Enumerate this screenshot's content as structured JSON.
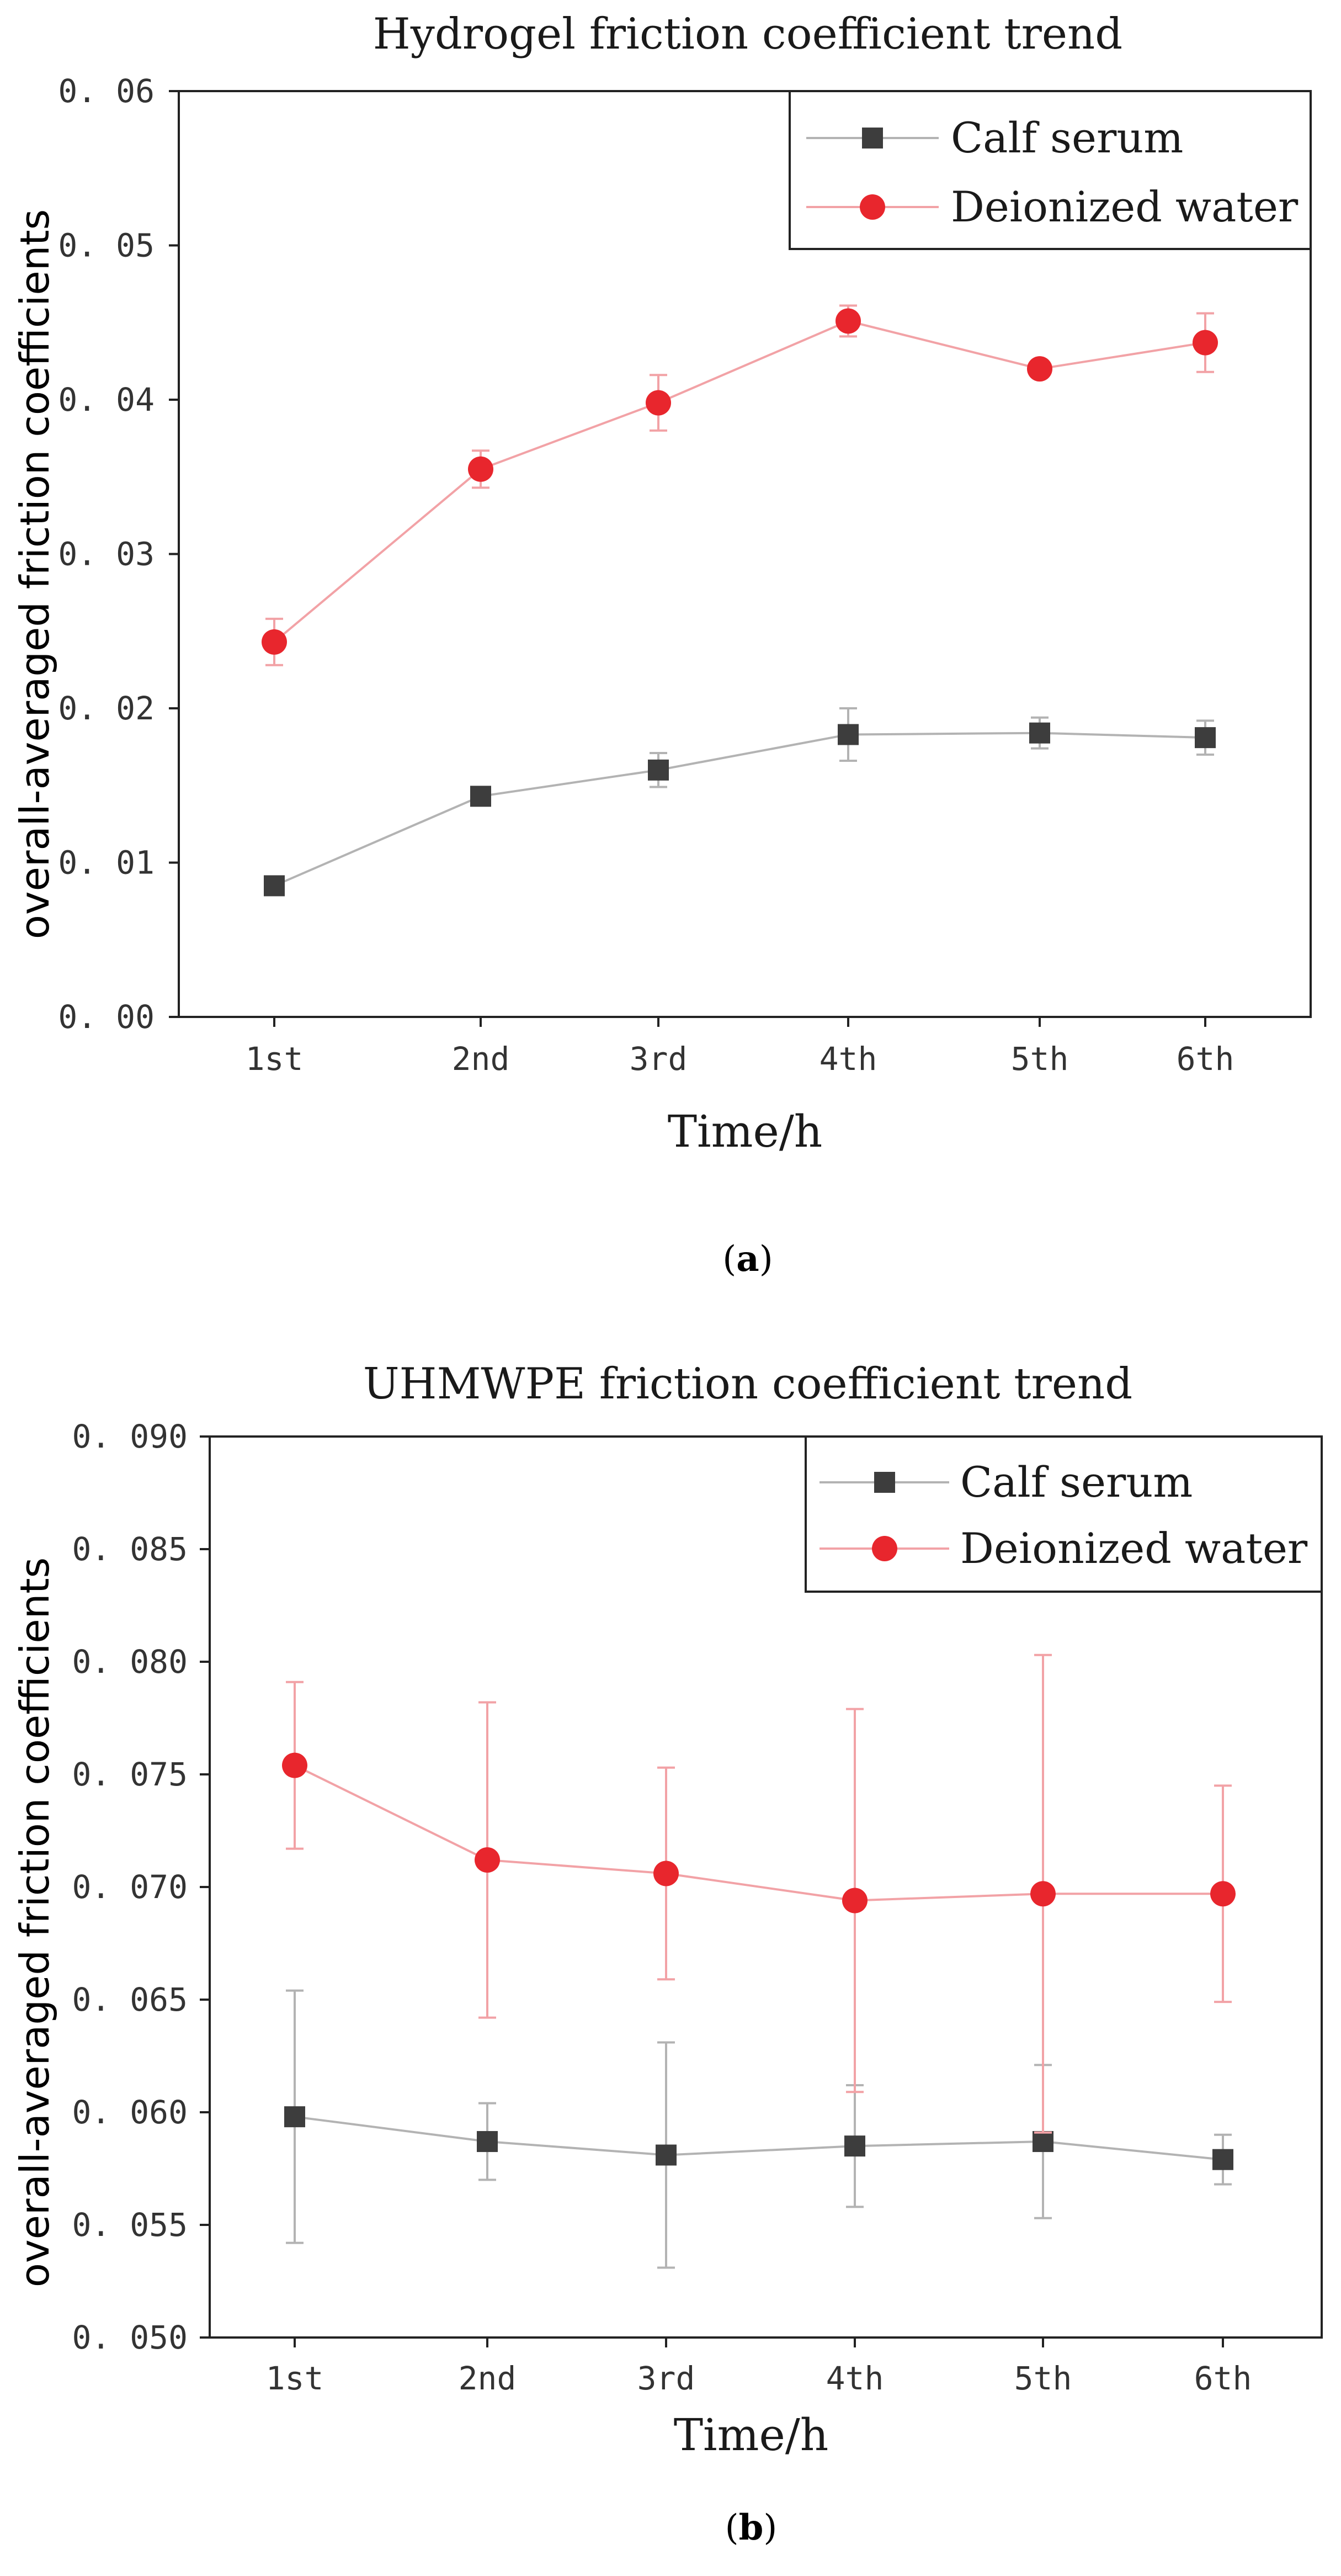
{
  "chart_data": [
    {
      "type": "line",
      "title": "Hydrogel friction coefficient trend",
      "xlabel": "Time/h",
      "ylabel": "overall-averaged friction coefficients",
      "categories": [
        "1st",
        "2nd",
        "3rd",
        "4th",
        "5th",
        "6th"
      ],
      "ylim": [
        0,
        0.06
      ],
      "ytick_labels": [
        "0. 00",
        "0. 01",
        "0. 02",
        "0. 03",
        "0. 04",
        "0. 05",
        "0. 06"
      ],
      "grid": false,
      "legend_position": "top-right",
      "panel_label": {
        "open": "(",
        "letter": "a",
        "close": ")"
      },
      "series": [
        {
          "name": "Calf serum",
          "marker": "square",
          "line_color": "#b3b3b3",
          "marker_color": "#3d3d3d",
          "values": [
            0.0085,
            0.0143,
            0.016,
            0.0183,
            0.0184,
            0.0181
          ],
          "errors": [
            0.0,
            0.0006,
            0.0011,
            0.0017,
            0.001,
            0.0011
          ]
        },
        {
          "name": "Deionized water",
          "marker": "circle",
          "line_color": "#f2a2a6",
          "marker_color": "#e8262d",
          "values": [
            0.0243,
            0.0355,
            0.0398,
            0.0451,
            0.042,
            0.0437
          ],
          "errors": [
            0.0015,
            0.0012,
            0.0018,
            0.001,
            0.0,
            0.0019
          ]
        }
      ]
    },
    {
      "type": "line",
      "title": "UHMWPE friction coefficient trend",
      "xlabel": "Time/h",
      "ylabel": "overall-averaged friction coefficients",
      "categories": [
        "1st",
        "2nd",
        "3rd",
        "4th",
        "5th",
        "6th"
      ],
      "ylim": [
        0.05,
        0.09
      ],
      "ytick_labels": [
        "0. 050",
        "0. 055",
        "0. 060",
        "0. 065",
        "0. 070",
        "0. 075",
        "0. 080",
        "0. 085",
        "0. 090"
      ],
      "grid": false,
      "legend_position": "top-right",
      "panel_label": {
        "open": "(",
        "letter": "b",
        "close": ")"
      },
      "series": [
        {
          "name": "Calf serum",
          "marker": "square",
          "line_color": "#b3b3b3",
          "marker_color": "#3d3d3d",
          "values": [
            0.0598,
            0.0587,
            0.0581,
            0.0585,
            0.0587,
            0.0579
          ],
          "errors": [
            0.0056,
            0.0017,
            0.005,
            0.0027,
            0.0034,
            0.0011
          ]
        },
        {
          "name": "Deionized water",
          "marker": "circle",
          "line_color": "#f2a2a6",
          "marker_color": "#e8262d",
          "values": [
            0.0754,
            0.0712,
            0.0706,
            0.0694,
            0.0697,
            0.0697
          ],
          "errors": [
            0.0037,
            0.007,
            0.0047,
            0.0085,
            0.0106,
            0.0048
          ]
        }
      ]
    }
  ]
}
